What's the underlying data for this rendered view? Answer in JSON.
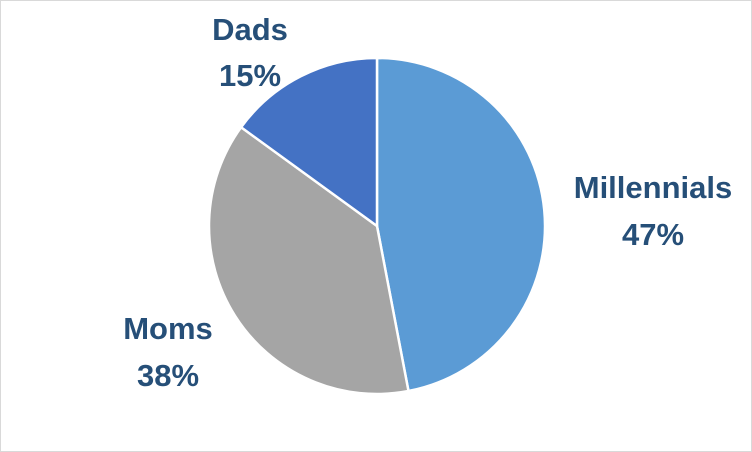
{
  "chart_data": {
    "type": "pie",
    "title": "",
    "categories": [
      "Millennials",
      "Moms",
      "Dads"
    ],
    "values": [
      47,
      38,
      15
    ],
    "value_labels": [
      "47%",
      "38%",
      "15%"
    ],
    "colors": [
      "#5b9bd5",
      "#a5a5a5",
      "#4472c4"
    ],
    "label_color": "#264f78",
    "start_angle_deg": 0,
    "direction": "clockwise",
    "legend": "none",
    "data_labels": "outside"
  }
}
